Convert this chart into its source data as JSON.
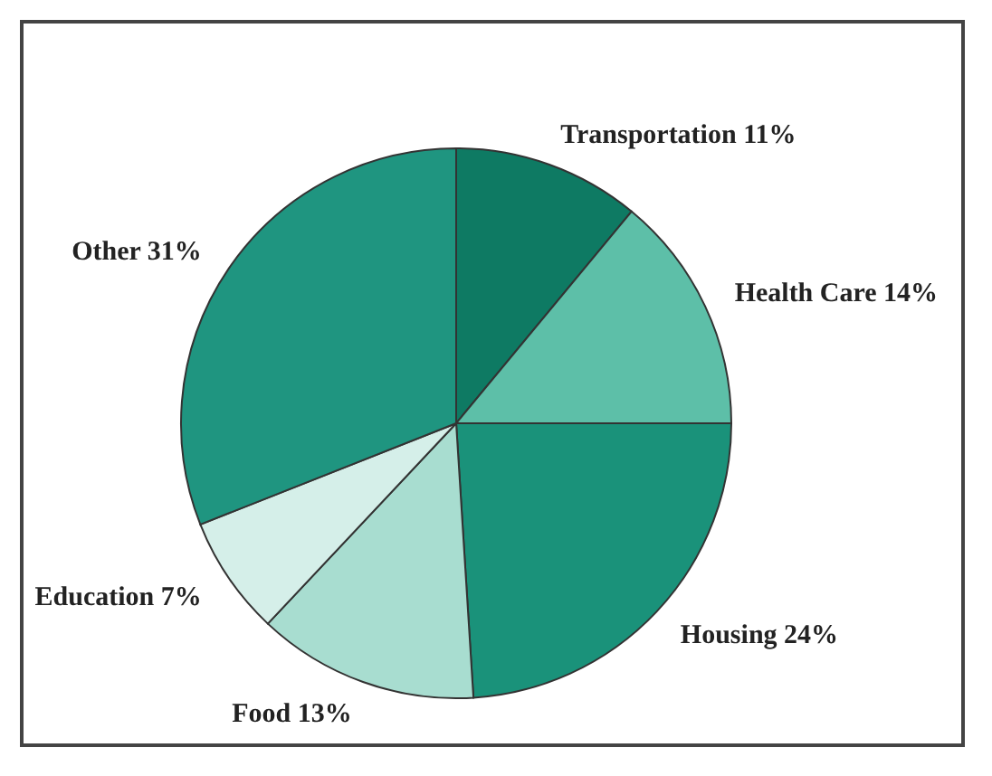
{
  "chart_data": {
    "type": "pie",
    "categories": [
      "Transportation",
      "Health Care",
      "Housing",
      "Food",
      "Education",
      "Other"
    ],
    "values": [
      11,
      14,
      24,
      13,
      7,
      31
    ],
    "value_labels": [
      "11%",
      "14%",
      "24%",
      "13%",
      "7%",
      "31%"
    ],
    "colors": [
      "#0e7a63",
      "#5dbfa8",
      "#1a927a",
      "#a8ddd0",
      "#d5efe9",
      "#1f9580"
    ],
    "legend": false
  }
}
